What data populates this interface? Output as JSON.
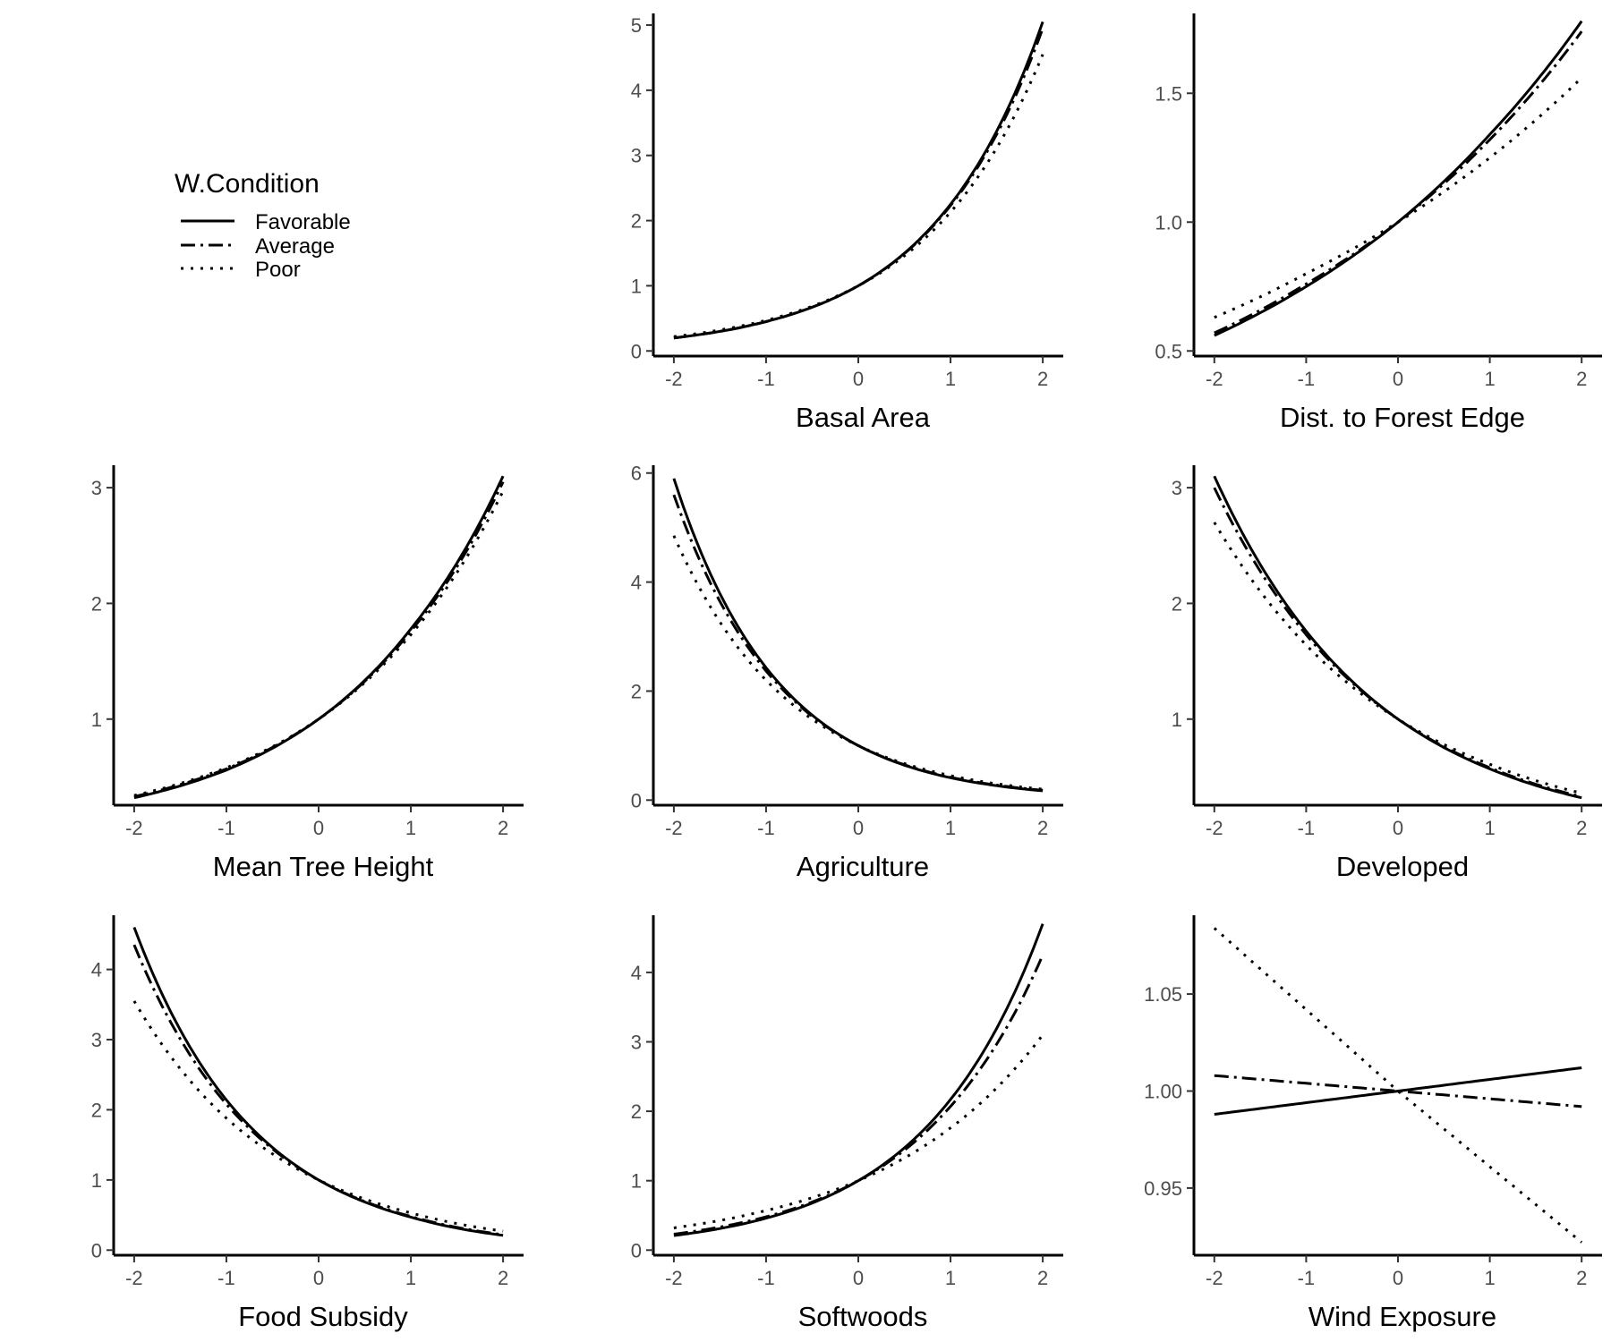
{
  "legend": {
    "title": "W.Condition",
    "entries": [
      {
        "label": "Favorable",
        "dash": "solid"
      },
      {
        "label": "Average",
        "dash": "dashdot"
      },
      {
        "label": "Poor",
        "dash": "dotted"
      }
    ]
  },
  "chart_data": [
    {
      "type": "line",
      "xlabel": "Basal Area",
      "xlim": [
        -2,
        2
      ],
      "ylim": [
        0,
        5.1
      ],
      "xticks": [
        -2,
        -1,
        0,
        1,
        2
      ],
      "yticks": [
        0,
        1,
        2,
        3,
        4,
        5
      ],
      "series": [
        {
          "name": "Favorable",
          "x": [
            -2,
            -1,
            0,
            1,
            2
          ],
          "y": [
            0.2,
            0.45,
            1.0,
            2.25,
            5.05
          ]
        },
        {
          "name": "Average",
          "x": [
            -2,
            -1,
            0,
            1,
            2
          ],
          "y": [
            0.2,
            0.45,
            1.0,
            2.23,
            4.95
          ]
        },
        {
          "name": "Poor",
          "x": [
            -2,
            -1,
            0,
            1,
            2
          ],
          "y": [
            0.22,
            0.47,
            1.0,
            2.13,
            4.55
          ]
        }
      ]
    },
    {
      "type": "line",
      "xlabel": "Dist. to Forest Edge",
      "xlim": [
        -2,
        2
      ],
      "ylim": [
        0.5,
        1.79
      ],
      "xticks": [
        -2,
        -1,
        0,
        1,
        2
      ],
      "yticks": [
        0.5,
        1.0,
        1.5
      ],
      "ytick_labels": [
        "0.5",
        "1.0",
        "1.5"
      ],
      "series": [
        {
          "name": "Favorable",
          "x": [
            -2,
            -1,
            0,
            1,
            2
          ],
          "y": [
            0.56,
            0.75,
            1.0,
            1.34,
            1.78
          ]
        },
        {
          "name": "Average",
          "x": [
            -2,
            -1,
            0,
            1,
            2
          ],
          "y": [
            0.57,
            0.76,
            1.0,
            1.32,
            1.74
          ]
        },
        {
          "name": "Poor",
          "x": [
            -2,
            -1,
            0,
            1,
            2
          ],
          "y": [
            0.63,
            0.8,
            1.0,
            1.25,
            1.56
          ]
        }
      ]
    },
    {
      "type": "line",
      "xlabel": "Mean Tree Height",
      "xlim": [
        -2,
        2
      ],
      "ylim": [
        0.3,
        3.15
      ],
      "xticks": [
        -2,
        -1,
        0,
        1,
        2
      ],
      "yticks": [
        1,
        2,
        3
      ],
      "series": [
        {
          "name": "Favorable",
          "x": [
            -2,
            -1,
            0,
            1,
            2
          ],
          "y": [
            0.32,
            0.56,
            1.0,
            1.78,
            3.1
          ]
        },
        {
          "name": "Average",
          "x": [
            -2,
            -1,
            0,
            1,
            2
          ],
          "y": [
            0.33,
            0.57,
            1.0,
            1.76,
            3.05
          ]
        },
        {
          "name": "Poor",
          "x": [
            -2,
            -1,
            0,
            1,
            2
          ],
          "y": [
            0.34,
            0.58,
            1.0,
            1.73,
            2.97
          ]
        }
      ]
    },
    {
      "type": "line",
      "xlabel": "Agriculture",
      "xlim": [
        -2,
        2
      ],
      "ylim": [
        0,
        6.05
      ],
      "xticks": [
        -2,
        -1,
        0,
        1,
        2
      ],
      "yticks": [
        0,
        2,
        4,
        6
      ],
      "series": [
        {
          "name": "Favorable",
          "x": [
            -2,
            -1,
            0,
            1,
            2
          ],
          "y": [
            5.9,
            2.43,
            1.0,
            0.41,
            0.17
          ]
        },
        {
          "name": "Average",
          "x": [
            -2,
            -1,
            0,
            1,
            2
          ],
          "y": [
            5.6,
            2.37,
            1.0,
            0.42,
            0.18
          ]
        },
        {
          "name": "Poor",
          "x": [
            -2,
            -1,
            0,
            1,
            2
          ],
          "y": [
            4.85,
            2.2,
            1.0,
            0.45,
            0.2
          ]
        }
      ]
    },
    {
      "type": "line",
      "xlabel": "Developed",
      "xlim": [
        -2,
        2
      ],
      "ylim": [
        0.3,
        3.15
      ],
      "xticks": [
        -2,
        -1,
        0,
        1,
        2
      ],
      "yticks": [
        1,
        2,
        3
      ],
      "series": [
        {
          "name": "Favorable",
          "x": [
            -2,
            -1,
            0,
            1,
            2
          ],
          "y": [
            3.1,
            1.76,
            1.0,
            0.57,
            0.32
          ]
        },
        {
          "name": "Average",
          "x": [
            -2,
            -1,
            0,
            1,
            2
          ],
          "y": [
            3.0,
            1.73,
            1.0,
            0.58,
            0.33
          ]
        },
        {
          "name": "Poor",
          "x": [
            -2,
            -1,
            0,
            1,
            2
          ],
          "y": [
            2.7,
            1.64,
            1.0,
            0.61,
            0.36
          ]
        }
      ]
    },
    {
      "type": "line",
      "xlabel": "Food Subsidy",
      "xlim": [
        -2,
        2
      ],
      "ylim": [
        0,
        4.7
      ],
      "xticks": [
        -2,
        -1,
        0,
        1,
        2
      ],
      "yticks": [
        0,
        1,
        2,
        3,
        4
      ],
      "series": [
        {
          "name": "Favorable",
          "x": [
            -2,
            -1,
            0,
            1,
            2
          ],
          "y": [
            4.6,
            2.14,
            1.0,
            0.47,
            0.21
          ]
        },
        {
          "name": "Average",
          "x": [
            -2,
            -1,
            0,
            1,
            2
          ],
          "y": [
            4.35,
            2.08,
            1.0,
            0.48,
            0.22
          ]
        },
        {
          "name": "Poor",
          "x": [
            -2,
            -1,
            0,
            1,
            2
          ],
          "y": [
            3.55,
            1.88,
            1.0,
            0.53,
            0.27
          ]
        }
      ]
    },
    {
      "type": "line",
      "xlabel": "Softwoods",
      "xlim": [
        -2,
        2
      ],
      "ylim": [
        0,
        4.75
      ],
      "xticks": [
        -2,
        -1,
        0,
        1,
        2
      ],
      "yticks": [
        0,
        1,
        2,
        3,
        4
      ],
      "series": [
        {
          "name": "Favorable",
          "x": [
            -2,
            -1,
            0,
            1,
            2
          ],
          "y": [
            0.21,
            0.46,
            1.0,
            2.17,
            4.7
          ]
        },
        {
          "name": "Average",
          "x": [
            -2,
            -1,
            0,
            1,
            2
          ],
          "y": [
            0.23,
            0.48,
            1.0,
            2.07,
            4.25
          ]
        },
        {
          "name": "Poor",
          "x": [
            -2,
            -1,
            0,
            1,
            2
          ],
          "y": [
            0.32,
            0.57,
            1.0,
            1.76,
            3.1
          ]
        }
      ]
    },
    {
      "type": "line",
      "xlabel": "Wind Exposure",
      "xlim": [
        -2,
        2
      ],
      "ylim": [
        0.918,
        1.088
      ],
      "xticks": [
        -2,
        -1,
        0,
        1,
        2
      ],
      "yticks": [
        0.95,
        1.0,
        1.05
      ],
      "ytick_labels": [
        "0.95",
        "1.00",
        "1.05"
      ],
      "series": [
        {
          "name": "Favorable",
          "x": [
            -2,
            -1,
            0,
            1,
            2
          ],
          "y": [
            0.988,
            0.994,
            1.0,
            1.006,
            1.012
          ]
        },
        {
          "name": "Average",
          "x": [
            -2,
            -1,
            0,
            1,
            2
          ],
          "y": [
            1.008,
            1.004,
            1.0,
            0.996,
            0.992
          ]
        },
        {
          "name": "Poor",
          "x": [
            -2,
            -1,
            0,
            1,
            2
          ],
          "y": [
            1.084,
            1.042,
            1.0,
            0.961,
            0.922
          ]
        }
      ]
    }
  ]
}
